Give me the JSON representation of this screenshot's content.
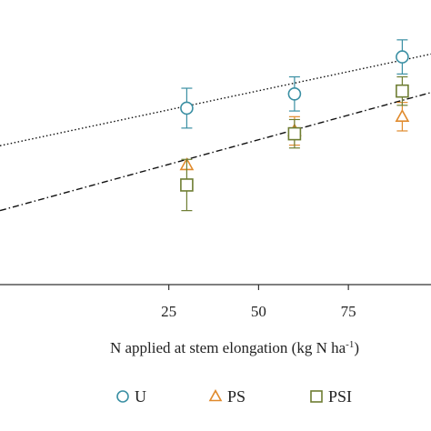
{
  "chart_data": {
    "type": "scatter",
    "title": "",
    "xlabel": "N applied at stem elongation (kg N ha",
    "xlabel_sup": "-1",
    "xlabel_end": ")",
    "ylabel": "",
    "xlim": [
      -22,
      98
    ],
    "ylim": [
      0,
      100
    ],
    "x_ticks": [
      25,
      50,
      75
    ],
    "grid": false,
    "legend_position": "bottom",
    "colors": {
      "U": "#3a8fa3",
      "PS": "#e08a2c",
      "PSI": "#6e7d32",
      "axis": "#333333",
      "line": "#111111"
    },
    "series": [
      {
        "name": "U",
        "marker": "circle",
        "x": [
          30,
          60,
          90
        ],
        "y": [
          62,
          67,
          80
        ],
        "err": [
          7,
          6,
          6
        ]
      },
      {
        "name": "PS",
        "marker": "triangle",
        "x": [
          30,
          60,
          90
        ],
        "y": [
          42,
          54,
          59
        ],
        "err": [
          0,
          5,
          5
        ]
      },
      {
        "name": "PSI",
        "marker": "square",
        "x": [
          30,
          60,
          90
        ],
        "y": [
          35,
          53,
          68
        ],
        "err": [
          9,
          5,
          5
        ]
      }
    ],
    "fit_lines": [
      {
        "for": "U",
        "style": "dotted",
        "x": [
          -22,
          98
        ],
        "y": [
          48.8,
          81
        ]
      },
      {
        "for": "PS/PSI",
        "style": "dashdot",
        "x": [
          -22,
          98
        ],
        "y": [
          26,
          67.5
        ]
      }
    ]
  }
}
